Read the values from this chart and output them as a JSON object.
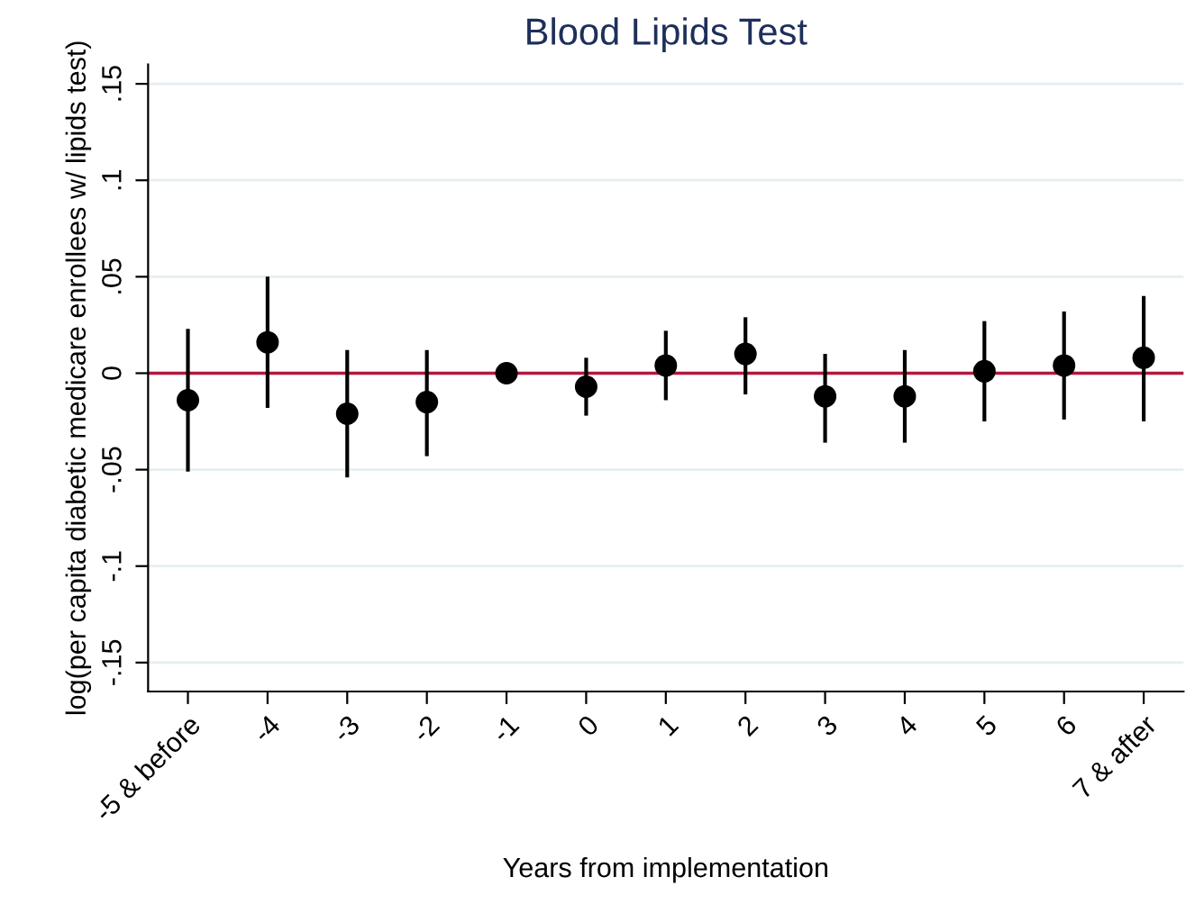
{
  "chart_data": {
    "type": "scatter",
    "title": "Blood Lipids Test",
    "xlabel": "Years from implementation",
    "ylabel": "log(per capita diabetic medicare enrollees w/ lipids test)",
    "categories": [
      "-5 & before",
      "-4",
      "-3",
      "-2",
      "-1",
      "0",
      "1",
      "2",
      "3",
      "4",
      "5",
      "6",
      "7 & after"
    ],
    "series": [
      {
        "color": "#000000",
        "values": [
          -0.014,
          0.016,
          -0.021,
          -0.015,
          0,
          -0.007,
          0.004,
          0.01,
          -0.012,
          -0.012,
          0.001,
          0.004,
          0.008
        ],
        "errors": [
          [
            -0.051,
            0.023
          ],
          [
            -0.018,
            0.05
          ],
          [
            -0.054,
            0.012
          ],
          [
            -0.043,
            0.012
          ],
          null,
          [
            -0.022,
            0.008
          ],
          [
            -0.014,
            0.022
          ],
          [
            -0.011,
            0.029
          ],
          [
            -0.036,
            0.01
          ],
          [
            -0.036,
            0.012
          ],
          [
            -0.025,
            0.027
          ],
          [
            -0.024,
            0.032
          ],
          [
            -0.025,
            0.04
          ]
        ]
      }
    ],
    "ylim": [
      -0.165,
      0.16
    ],
    "yticks": [
      {
        "value": -0.15,
        "label": "-.15"
      },
      {
        "value": -0.1,
        "label": "-.1"
      },
      {
        "value": -0.05,
        "label": "-.05"
      },
      0,
      {
        "value": 0.05,
        "label": ".05"
      },
      {
        "value": 0.1,
        "label": ".1"
      },
      {
        "value": 0.15,
        "label": ".15"
      }
    ],
    "ref_lines": [
      {
        "axis": "y",
        "value": 0,
        "color": "#b5163f"
      }
    ],
    "grid": "y",
    "marker": "circle"
  }
}
